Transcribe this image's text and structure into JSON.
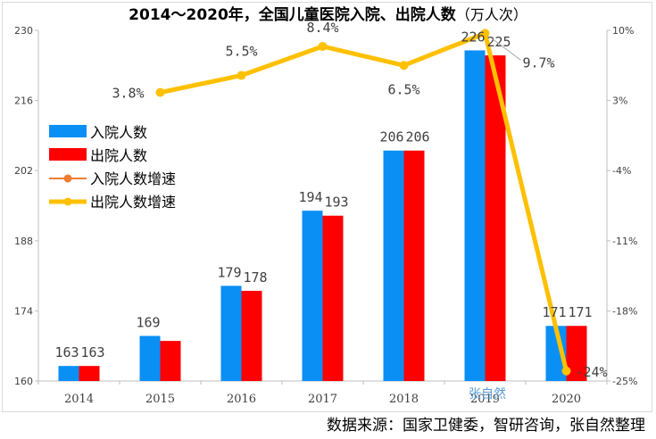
{
  "title": {
    "main": "2014～2020年，全国儿童医院入院、出院人数",
    "unit": "（万人次）"
  },
  "source_note": "数据来源：国家卫健委，智研咨询，张自然整理",
  "watermark": "张自然",
  "colors": {
    "admissions": "#0a8ff5",
    "discharges": "#ff0000",
    "admissions_growth": "#ed7d31",
    "discharges_growth": "#ffc000"
  },
  "chart_data": {
    "type": "bar",
    "categories": [
      "2014",
      "2015",
      "2016",
      "2017",
      "2018",
      "2019",
      "2020"
    ],
    "series": [
      {
        "name": "入院人数",
        "type": "bar",
        "axis": "left",
        "values": [
          163,
          169,
          179,
          194,
          206,
          226,
          171
        ]
      },
      {
        "name": "出院人数",
        "type": "bar",
        "axis": "left",
        "values": [
          163,
          168,
          178,
          193,
          206,
          225,
          171
        ]
      },
      {
        "name": "入院人数增速",
        "type": "line",
        "axis": "right",
        "values": [
          null,
          3.8,
          5.5,
          8.4,
          6.5,
          9.7,
          -24
        ]
      },
      {
        "name": "出院人数增速",
        "type": "line",
        "axis": "right",
        "values": [
          null,
          3.8,
          5.5,
          8.4,
          6.5,
          9.7,
          -24
        ]
      }
    ],
    "bar_labels": [
      {
        "category": "2014",
        "admissions": "163",
        "discharges": "163"
      },
      {
        "category": "2015",
        "admissions": "169",
        "discharges": ""
      },
      {
        "category": "2016",
        "admissions": "179",
        "discharges": "178"
      },
      {
        "category": "2017",
        "admissions": "194",
        "discharges": "193"
      },
      {
        "category": "2018",
        "admissions": "206",
        "discharges": "206"
      },
      {
        "category": "2019",
        "admissions": "226",
        "discharges": "225"
      },
      {
        "category": "2020",
        "admissions": "171",
        "discharges": "171"
      }
    ],
    "line_labels": [
      "",
      "3.8%",
      "5.5%",
      "8.4%",
      "6.5%",
      "9.7%",
      "-24%"
    ],
    "left_axis": {
      "min": 160,
      "max": 230,
      "ticks": [
        "160",
        "174",
        "188",
        "202",
        "216",
        "230"
      ],
      "tick_values": [
        160,
        174,
        188,
        202,
        216,
        230
      ]
    },
    "right_axis": {
      "min": -25,
      "max": 10,
      "ticks": [
        "-25%",
        "-18%",
        "-11%",
        "-4%",
        "3%",
        "10%"
      ],
      "tick_values": [
        -25,
        -18,
        -11,
        -4,
        3,
        10
      ]
    },
    "grid": false,
    "legend_position": "left"
  }
}
